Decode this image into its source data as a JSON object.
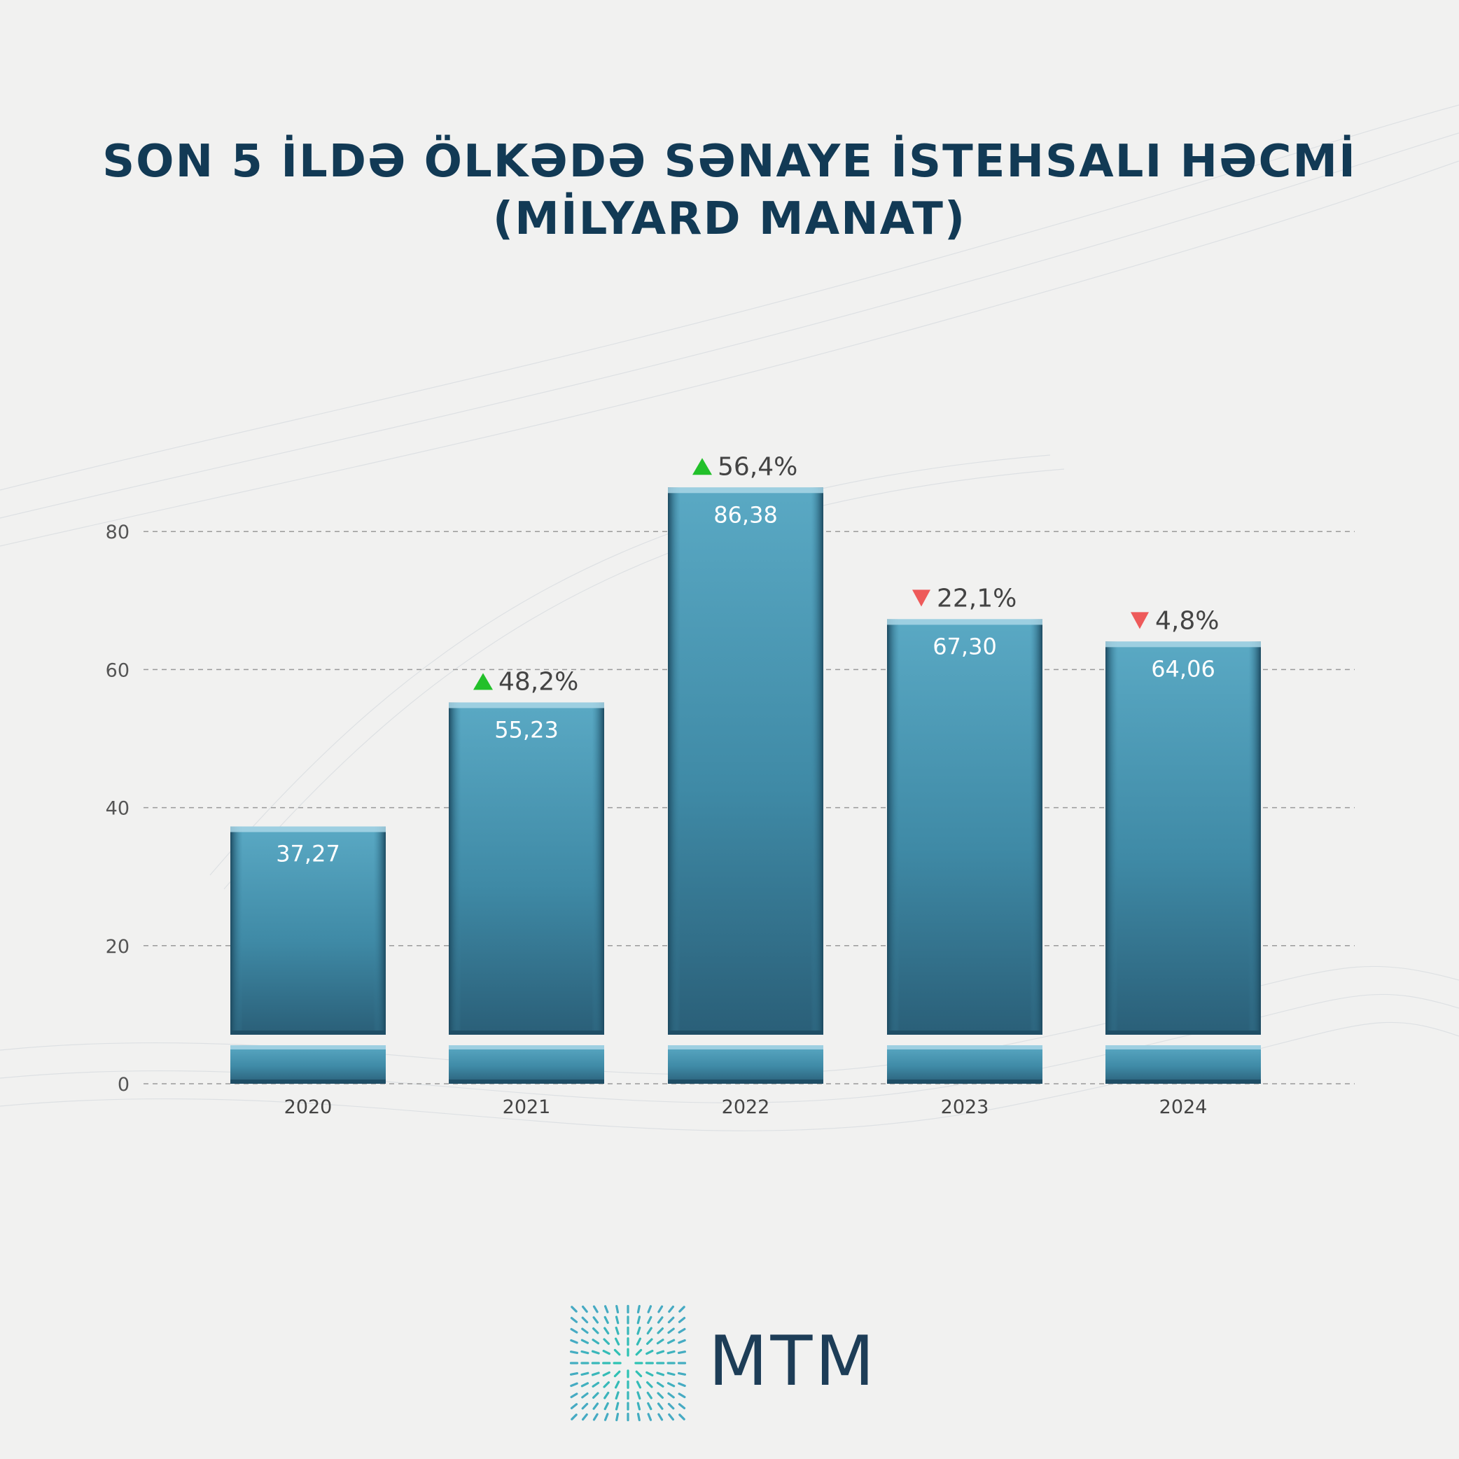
{
  "title_lines": [
    "SON 5 İLDƏ ÖLKƏDƏ SƏNAYE İSTEHSALI HƏCMİ",
    "(MİLYARD MANAT)"
  ],
  "brand": {
    "name": "MTM"
  },
  "colors": {
    "title": "#123a55",
    "bar_fill": "#4e9bb7",
    "bar_dark": "#1f4e66",
    "up": "#22c02a",
    "down": "#ee5a5a",
    "label": "#444444",
    "grid": "#9a9a9a"
  },
  "chart_data": {
    "type": "bar",
    "categories": [
      "2020",
      "2021",
      "2022",
      "2023",
      "2024"
    ],
    "values": [
      37.27,
      55.23,
      86.38,
      67.3,
      64.06
    ],
    "value_labels": [
      "37,27",
      "55,23",
      "86,38",
      "67,30",
      "64,06"
    ],
    "changes": [
      null,
      {
        "direction": "up",
        "label": "48,2%"
      },
      {
        "direction": "up",
        "label": "56,4%"
      },
      {
        "direction": "down",
        "label": "22,1%"
      },
      {
        "direction": "down",
        "label": "4,8%"
      }
    ],
    "yticks": [
      0,
      20,
      40,
      60,
      80
    ],
    "ylim": [
      0,
      90
    ],
    "grid": true,
    "axis_break": true
  }
}
